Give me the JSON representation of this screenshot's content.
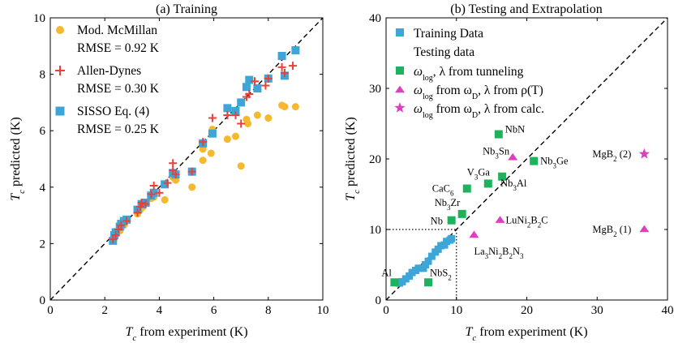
{
  "colors": {
    "mcmillan": "#f5b82e",
    "allen": "#e8413c",
    "sisso": "#3ea6d6",
    "tunneling": "#1db35c",
    "magenta": "#df3fbd",
    "axis": "#000000"
  },
  "chart_data": [
    {
      "type": "scatter",
      "title": "(a) Training",
      "xlabel": "T_c from experiment (K)",
      "ylabel": "T_c predicted (K)",
      "xlim": [
        0,
        10
      ],
      "ylim": [
        0,
        10
      ],
      "xticks": [
        "0",
        "2",
        "4",
        "6",
        "8",
        "10"
      ],
      "yticks": [
        "0",
        "2",
        "4",
        "6",
        "8",
        "10"
      ],
      "diagonal": "dashed",
      "legend_position": "top-left",
      "legend": [
        {
          "name": "Mod. McMillan",
          "rmse": "RMSE = 0.92 K",
          "marker": "circle"
        },
        {
          "name": "Allen-Dynes",
          "rmse": "RMSE = 0.30 K",
          "marker": "plus"
        },
        {
          "name": "SISSO Eq. (4)",
          "rmse": "RMSE = 0.25 K",
          "marker": "square"
        }
      ],
      "series": [
        {
          "name": "Mod. McMillan",
          "marker": "circle",
          "points": [
            [
              2.32,
              2.12
            ],
            [
              2.36,
              2.2
            ],
            [
              2.4,
              2.3
            ],
            [
              2.55,
              2.45
            ],
            [
              2.6,
              2.55
            ],
            [
              2.7,
              2.65
            ],
            [
              2.8,
              2.85
            ],
            [
              3.2,
              3.05
            ],
            [
              3.3,
              3.2
            ],
            [
              3.4,
              3.3
            ],
            [
              3.5,
              3.45
            ],
            [
              3.7,
              3.6
            ],
            [
              3.8,
              3.65
            ],
            [
              4.2,
              3.55
            ],
            [
              4.2,
              4.1
            ],
            [
              4.5,
              4.35
            ],
            [
              4.6,
              4.25
            ],
            [
              5.2,
              4.0
            ],
            [
              5.6,
              4.95
            ],
            [
              5.6,
              5.35
            ],
            [
              5.9,
              5.2
            ],
            [
              5.95,
              6.05
            ],
            [
              6.5,
              5.7
            ],
            [
              6.8,
              5.8
            ],
            [
              7.0,
              4.75
            ],
            [
              7.2,
              6.4
            ],
            [
              7.25,
              6.25
            ],
            [
              7.6,
              6.55
            ],
            [
              8.0,
              6.45
            ],
            [
              8.5,
              6.9
            ],
            [
              8.6,
              6.85
            ],
            [
              9.0,
              6.85
            ]
          ]
        },
        {
          "name": "Allen-Dynes",
          "marker": "plus",
          "points": [
            [
              2.3,
              2.15
            ],
            [
              2.4,
              2.3
            ],
            [
              2.5,
              2.5
            ],
            [
              2.6,
              2.65
            ],
            [
              2.8,
              2.8
            ],
            [
              3.2,
              3.1
            ],
            [
              3.3,
              3.3
            ],
            [
              3.35,
              3.45
            ],
            [
              3.5,
              3.4
            ],
            [
              3.7,
              3.75
            ],
            [
              3.8,
              4.05
            ],
            [
              4.0,
              3.8
            ],
            [
              4.3,
              4.15
            ],
            [
              4.5,
              4.6
            ],
            [
              4.5,
              4.85
            ],
            [
              4.6,
              4.45
            ],
            [
              5.2,
              4.55
            ],
            [
              5.6,
              5.6
            ],
            [
              5.95,
              6.45
            ],
            [
              6.5,
              6.55
            ],
            [
              6.8,
              6.55
            ],
            [
              7.0,
              6.25
            ],
            [
              7.2,
              7.2
            ],
            [
              7.3,
              7.3
            ],
            [
              7.5,
              7.75
            ],
            [
              7.9,
              7.6
            ],
            [
              8.0,
              7.85
            ],
            [
              8.5,
              8.25
            ],
            [
              8.6,
              8.05
            ],
            [
              8.9,
              8.3
            ]
          ]
        },
        {
          "name": "SISSO Eq. (4)",
          "marker": "square",
          "points": [
            [
              2.3,
              2.1
            ],
            [
              2.35,
              2.3
            ],
            [
              2.4,
              2.4
            ],
            [
              2.55,
              2.6
            ],
            [
              2.6,
              2.7
            ],
            [
              2.7,
              2.8
            ],
            [
              2.8,
              2.85
            ],
            [
              3.2,
              3.2
            ],
            [
              3.35,
              3.4
            ],
            [
              3.5,
              3.45
            ],
            [
              3.7,
              3.7
            ],
            [
              3.8,
              3.8
            ],
            [
              4.2,
              4.1
            ],
            [
              4.5,
              4.5
            ],
            [
              4.6,
              4.45
            ],
            [
              5.2,
              4.55
            ],
            [
              5.6,
              5.55
            ],
            [
              5.95,
              5.9
            ],
            [
              6.5,
              6.8
            ],
            [
              6.8,
              6.7
            ],
            [
              7.0,
              7.0
            ],
            [
              7.2,
              7.55
            ],
            [
              7.3,
              7.8
            ],
            [
              7.6,
              7.5
            ],
            [
              8.0,
              7.85
            ],
            [
              8.5,
              8.65
            ],
            [
              8.6,
              7.95
            ],
            [
              9.0,
              8.85
            ]
          ]
        }
      ]
    },
    {
      "type": "scatter",
      "title": "(b) Testing and Extrapolation",
      "xlabel": "T_c from experiment (K)",
      "ylabel": "T_c predicted (K)",
      "xlim": [
        0,
        40
      ],
      "ylim": [
        0,
        40
      ],
      "xticks": [
        "0",
        "10",
        "20",
        "30",
        "40"
      ],
      "yticks": [
        "0",
        "10",
        "20",
        "30",
        "40"
      ],
      "diagonal": "dashed",
      "guide_lines": "dotted at T_c = 10 K",
      "legend_position": "top-left",
      "legend": {
        "training": "Training Data",
        "testing_header": "Testing data",
        "tunneling_suffix": ", λ from tunneling",
        "rho_mid": " from ω",
        "rho_suffix": ", λ from ρ(T)",
        "calc_mid": " from ω",
        "calc_suffix": ", λ from calc."
      },
      "training": [
        [
          1.9,
          2.4
        ],
        [
          2.3,
          2.6
        ],
        [
          2.8,
          3.0
        ],
        [
          3.3,
          3.4
        ],
        [
          3.7,
          3.9
        ],
        [
          4.2,
          4.2
        ],
        [
          4.6,
          4.5
        ],
        [
          5.3,
          4.5
        ],
        [
          5.6,
          5.0
        ],
        [
          6.0,
          5.5
        ],
        [
          6.5,
          6.2
        ],
        [
          7.0,
          6.8
        ],
        [
          7.4,
          7.2
        ],
        [
          7.8,
          7.7
        ],
        [
          8.3,
          7.8
        ],
        [
          8.6,
          8.3
        ],
        [
          9.1,
          8.5
        ],
        [
          9.3,
          8.7
        ]
      ],
      "testing": [
        {
          "name": "Al",
          "x": 1.2,
          "y": 2.5,
          "group": "tunneling",
          "main": "Al",
          "subs": []
        },
        {
          "name": "NbS2",
          "x": 6.0,
          "y": 2.5,
          "group": "tunneling",
          "main": "NbS",
          "subs": [
            "2"
          ]
        },
        {
          "name": "Nb",
          "x": 9.3,
          "y": 11.3,
          "group": "tunneling",
          "main": "Nb",
          "subs": []
        },
        {
          "name": "Nb3Zr",
          "x": 10.8,
          "y": 12.2,
          "group": "tunneling",
          "main": "Nb",
          "subs": [
            "3",
            "Zr"
          ]
        },
        {
          "name": "CaC6",
          "x": 11.5,
          "y": 15.8,
          "group": "tunneling",
          "main": "CaC",
          "subs": [
            "6"
          ]
        },
        {
          "name": "V3Ga",
          "x": 14.5,
          "y": 16.5,
          "group": "tunneling",
          "main": "V",
          "subs": [
            "3",
            "Ga"
          ]
        },
        {
          "name": "Nb3Al",
          "x": 16.5,
          "y": 17.5,
          "group": "tunneling",
          "main": "Nb",
          "subs": [
            "3",
            "Al"
          ]
        },
        {
          "name": "NbN",
          "x": 16.0,
          "y": 23.5,
          "group": "tunneling",
          "main": "NbN",
          "subs": []
        },
        {
          "name": "Nb3Ge",
          "x": 21.0,
          "y": 19.7,
          "group": "tunneling",
          "main": "Nb",
          "subs": [
            "3",
            "Ge"
          ]
        },
        {
          "name": "Nb3Sn",
          "x": 18.0,
          "y": 20.2,
          "group": "rho",
          "main": "Nb",
          "subs": [
            "3",
            "Sn"
          ]
        },
        {
          "name": "LuNi2B2C",
          "x": 16.2,
          "y": 11.3,
          "group": "rho",
          "main": "LuNi",
          "subs": [
            "2",
            "B",
            "2",
            "C"
          ]
        },
        {
          "name": "La3Ni2B2N3",
          "x": 12.5,
          "y": 9.2,
          "group": "rho",
          "main": "La",
          "subs": [
            "3",
            "Ni",
            "2",
            "B",
            "2",
            "N",
            "3"
          ]
        },
        {
          "name": "MgB2 (1)",
          "x": 36.7,
          "y": 10.0,
          "group": "rho",
          "main": "MgB",
          "subs": [
            "2",
            " (1)"
          ]
        },
        {
          "name": "MgB2 (2)",
          "x": 36.7,
          "y": 20.7,
          "group": "calc",
          "main": "MgB",
          "subs": [
            "2",
            " (2)"
          ]
        }
      ]
    }
  ]
}
